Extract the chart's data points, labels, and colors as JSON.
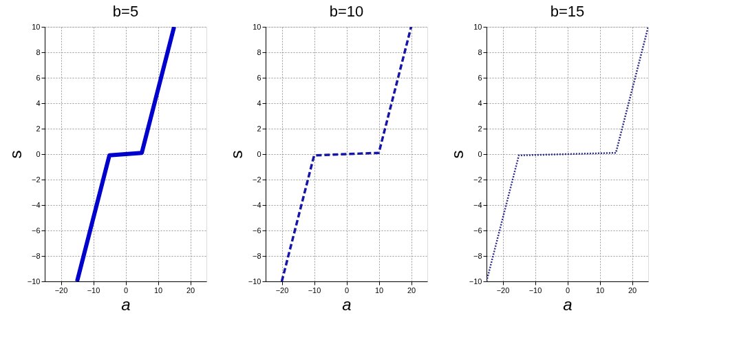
{
  "chart_data": [
    {
      "type": "line",
      "title": "b=5",
      "xlabel": "a",
      "ylabel": "s",
      "xlim": [
        -25,
        25
      ],
      "xticks": [
        -20,
        -10,
        0,
        10,
        20
      ],
      "ylim": [
        -10,
        10
      ],
      "yticks": [
        -10,
        -8,
        -6,
        -4,
        -2,
        0,
        2,
        4,
        6,
        8,
        10
      ],
      "grid": true,
      "line_style": "solid",
      "series": [
        {
          "color": "#0000cc",
          "x": [
            -15,
            -5,
            5,
            15
          ],
          "values": [
            -10,
            -0.1,
            0.1,
            10
          ]
        }
      ]
    },
    {
      "type": "line",
      "title": "b=10",
      "xlabel": "a",
      "ylabel": "s",
      "xlim": [
        -25,
        25
      ],
      "xticks": [
        -20,
        -10,
        0,
        10,
        20
      ],
      "ylim": [
        -10,
        10
      ],
      "yticks": [
        -10,
        -8,
        -6,
        -4,
        -2,
        0,
        2,
        4,
        6,
        8,
        10
      ],
      "grid": true,
      "line_style": "dashed",
      "series": [
        {
          "color": "#1515a8",
          "x": [
            -20,
            -10,
            10,
            20
          ],
          "values": [
            -10,
            -0.1,
            0.1,
            10
          ]
        }
      ]
    },
    {
      "type": "line",
      "title": "b=15",
      "xlabel": "a",
      "ylabel": "s",
      "xlim": [
        -25,
        25
      ],
      "xticks": [
        -20,
        -10,
        0,
        10,
        20
      ],
      "ylim": [
        -10,
        10
      ],
      "yticks": [
        -10,
        -8,
        -6,
        -4,
        -2,
        0,
        2,
        4,
        6,
        8,
        10
      ],
      "grid": true,
      "line_style": "dotted",
      "series": [
        {
          "color": "#2a2a8a",
          "x": [
            -25,
            -15,
            15,
            25
          ],
          "values": [
            -10,
            -0.1,
            0.1,
            10
          ]
        }
      ]
    }
  ]
}
